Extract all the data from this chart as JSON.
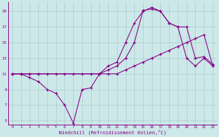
{
  "line1_x": [
    0,
    1,
    2,
    3,
    4,
    5,
    6,
    7,
    8,
    9,
    10,
    11,
    12,
    13,
    14,
    15,
    16,
    17,
    18,
    19,
    20,
    21,
    22,
    23
  ],
  "line1_y": [
    11,
    11,
    10.5,
    10,
    9,
    8.5,
    7,
    4.7,
    9,
    9.2,
    11,
    12,
    12.5,
    15,
    17.5,
    19,
    19.5,
    19,
    17.5,
    17,
    13,
    12,
    13,
    12
  ],
  "line2_x": [
    0,
    1,
    2,
    3,
    4,
    5,
    6,
    7,
    8,
    9,
    10,
    11,
    12,
    13,
    14,
    15,
    16,
    17,
    18,
    19,
    20,
    21,
    22,
    23
  ],
  "line2_y": [
    11,
    11,
    11,
    11,
    11,
    11,
    11,
    11,
    11,
    11,
    11,
    11,
    11,
    11.5,
    12,
    12.5,
    13,
    13.5,
    14,
    14.5,
    15,
    15.5,
    16,
    12
  ],
  "line3_x": [
    0,
    1,
    2,
    3,
    10,
    11,
    12,
    13,
    14,
    15,
    16,
    17,
    18,
    19,
    20,
    21,
    22,
    23
  ],
  "line3_y": [
    11,
    11,
    11,
    11,
    11,
    11.5,
    12,
    13,
    15,
    19.1,
    19.3,
    19,
    17.5,
    17,
    17,
    13,
    13.2,
    12.2
  ],
  "line_color": "#880088",
  "bg_color": "#cce8e8",
  "grid_color": "#aacccc",
  "xlim": [
    -0.5,
    23.5
  ],
  "ylim": [
    4.5,
    20.2
  ],
  "xlabel": "Windchill (Refroidissement éolien,°C)",
  "yticks": [
    5,
    7,
    9,
    11,
    13,
    15,
    17,
    19
  ],
  "xticks": [
    0,
    1,
    2,
    3,
    4,
    5,
    6,
    7,
    8,
    9,
    10,
    11,
    12,
    13,
    14,
    15,
    16,
    17,
    18,
    19,
    20,
    21,
    22,
    23
  ]
}
